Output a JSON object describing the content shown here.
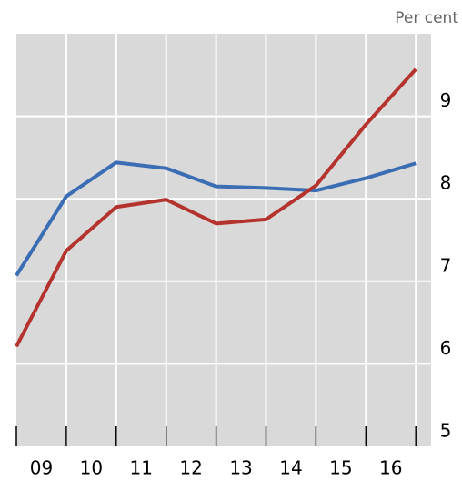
{
  "chart_data": {
    "type": "line",
    "y_label": "Per cent",
    "categories": [
      "09",
      "10",
      "11",
      "12",
      "13",
      "14",
      "15",
      "16",
      null
    ],
    "series": [
      {
        "name": null,
        "color": "#3a6db3",
        "values": [
          7.07,
          8.03,
          8.44,
          8.37,
          8.15,
          8.13,
          8.1,
          8.25,
          8.43
        ]
      },
      {
        "name": null,
        "color": "#b5332e",
        "values": [
          6.21,
          7.37,
          7.9,
          7.99,
          7.7,
          7.75,
          8.16,
          8.9,
          9.57
        ]
      }
    ],
    "ylim": [
      5,
      10
    ],
    "yticks": [
      5,
      6,
      7,
      8,
      9
    ],
    "grid": true,
    "background": "#d9d9d9"
  }
}
